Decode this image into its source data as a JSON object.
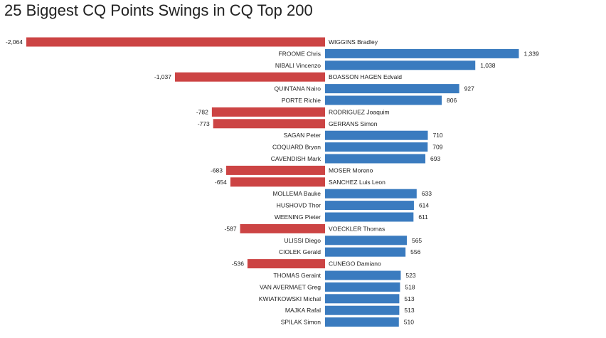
{
  "title": "25 Biggest CQ Points Swings in CQ Top 200",
  "colors": {
    "positive": "#3a7bbf",
    "negative": "#cc4444"
  },
  "chart_data": {
    "type": "bar",
    "orientation": "horizontal",
    "diverging": true,
    "title": "25 Biggest CQ Points Swings in CQ Top 200",
    "xlabel": "",
    "ylabel": "",
    "xlim": [
      -2064,
      1339
    ],
    "grid": false,
    "legend": "none",
    "categories": [
      "WIGGINS Bradley",
      "FROOME Chris",
      "NIBALI Vincenzo",
      "BOASSON HAGEN Edvald",
      "QUINTANA Nairo",
      "PORTE Richie",
      "RODRIGUEZ Joaquim",
      "GERRANS Simon",
      "SAGAN Peter",
      "COQUARD Bryan",
      "CAVENDISH Mark",
      "MOSER Moreno",
      "SANCHEZ Luis Leon",
      "MOLLEMA Bauke",
      "HUSHOVD Thor",
      "WEENING Pieter",
      "VOECKLER Thomas",
      "ULISSI Diego",
      "CIOLEK Gerald",
      "CUNEGO Damiano",
      "THOMAS Geraint",
      "VAN AVERMAET Greg",
      "KWIATKOWSKI Michal",
      "MAJKA Rafal",
      "SPILAK Simon"
    ],
    "values": [
      -2064,
      1339,
      1038,
      -1037,
      927,
      806,
      -782,
      -773,
      710,
      709,
      693,
      -683,
      -654,
      633,
      614,
      611,
      -587,
      565,
      556,
      -536,
      523,
      518,
      513,
      513,
      510
    ],
    "value_labels": [
      "-2,064",
      "1,339",
      "1,038",
      "-1,037",
      "927",
      "806",
      "-782",
      "-773",
      "710",
      "709",
      "693",
      "-683",
      "-654",
      "633",
      "614",
      "611",
      "-587",
      "565",
      "556",
      "-536",
      "523",
      "518",
      "513",
      "513",
      "510"
    ]
  }
}
